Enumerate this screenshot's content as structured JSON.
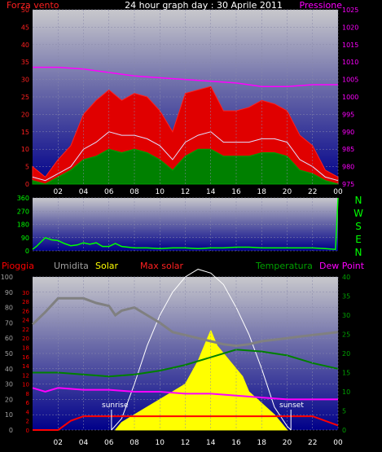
{
  "title": "24 hour graph day : 30 Aprile 2011",
  "colors": {
    "wind": "#ff0000",
    "gust": "#ff2020",
    "avg_wind": "#e0e0ff",
    "dir": "#00ff00",
    "pressure": "#ff00ff",
    "rain": "#ff0000",
    "humidity": "#808080",
    "solar": "#ffff00",
    "max_solar": "#ffffff",
    "temperature": "#008000",
    "dew": "#ff00ff",
    "label_rain": "#ff0000",
    "label_hum": "#a0a0a0",
    "label_solar": "#ffff00",
    "label_maxsolar": "#ff2020",
    "label_temp": "#00a000",
    "label_dew": "#ff00ff"
  },
  "chart_data": [
    {
      "type": "line",
      "labels": {
        "left": "Forza vento",
        "right": "Pressione"
      },
      "x_ticks": [
        "02",
        "04",
        "06",
        "08",
        "10",
        "12",
        "14",
        "16",
        "18",
        "20",
        "22",
        "00"
      ],
      "left_ticks": [
        0,
        5,
        10,
        15,
        20,
        25,
        30,
        35,
        40,
        45,
        50
      ],
      "right_ticks": [
        975,
        980,
        985,
        990,
        995,
        1000,
        1005,
        1010,
        1015,
        1020,
        1025
      ],
      "ylim_left": [
        0,
        50
      ],
      "ylim_right": [
        975,
        1025
      ],
      "series": [
        {
          "key": "gust",
          "x": [
            0,
            1,
            2,
            3,
            4,
            5,
            6,
            7,
            8,
            9,
            10,
            11,
            12,
            13,
            14,
            15,
            16,
            17,
            18,
            19,
            20,
            21,
            22,
            23,
            24
          ],
          "y": [
            5,
            2,
            7,
            11,
            20,
            24,
            27,
            24,
            26,
            25,
            21,
            15,
            26,
            27,
            28,
            21,
            21,
            22,
            24,
            23,
            21,
            14,
            11,
            4,
            2
          ]
        },
        {
          "key": "avg_wind",
          "x": [
            0,
            1,
            2,
            3,
            4,
            5,
            6,
            7,
            8,
            9,
            10,
            11,
            12,
            13,
            14,
            15,
            16,
            17,
            18,
            19,
            20,
            21,
            22,
            23,
            24
          ],
          "y": [
            2,
            1,
            3,
            5,
            10,
            12,
            15,
            14,
            14,
            13,
            11,
            7,
            12,
            14,
            15,
            12,
            12,
            12,
            13,
            13,
            12,
            7,
            5,
            2,
            1
          ]
        },
        {
          "key": "wind",
          "x": [
            0,
            1,
            2,
            3,
            4,
            5,
            6,
            7,
            8,
            9,
            10,
            11,
            12,
            13,
            14,
            15,
            16,
            17,
            18,
            19,
            20,
            21,
            22,
            23,
            24
          ],
          "y": [
            1,
            0,
            2,
            4,
            7,
            8,
            10,
            9,
            10,
            9,
            7,
            4,
            8,
            10,
            10,
            8,
            8,
            8,
            9,
            9,
            8,
            4,
            3,
            1,
            0
          ]
        },
        {
          "key": "pressure",
          "x": [
            0,
            2,
            4,
            6,
            8,
            10,
            12,
            14,
            16,
            18,
            20,
            22,
            24
          ],
          "y": [
            1008.5,
            1008.5,
            1008,
            1007,
            1006,
            1005.5,
            1005,
            1004.5,
            1004,
            1003,
            1003,
            1003.5,
            1003.5
          ]
        }
      ]
    },
    {
      "type": "line",
      "labels": {
        "right_top": "N",
        "right_labels": [
          "N",
          "W",
          "S",
          "E",
          "N"
        ]
      },
      "left_ticks": [
        0,
        90,
        180,
        270,
        360
      ],
      "ylim": [
        0,
        360
      ],
      "series": [
        {
          "key": "dir",
          "x": [
            0,
            0.3,
            1,
            1.5,
            2,
            2.5,
            3,
            3.5,
            4,
            4.5,
            5,
            5.5,
            6,
            6.5,
            7,
            8,
            9,
            10,
            11,
            12,
            13,
            14,
            15,
            16,
            17,
            18,
            19,
            20,
            21,
            22,
            23,
            23.8,
            24
          ],
          "y": [
            10,
            30,
            90,
            75,
            70,
            50,
            35,
            40,
            55,
            45,
            55,
            30,
            30,
            50,
            30,
            20,
            20,
            15,
            20,
            20,
            15,
            20,
            20,
            25,
            25,
            20,
            20,
            20,
            20,
            20,
            15,
            10,
            360
          ]
        }
      ]
    },
    {
      "type": "line",
      "labels": {
        "rain": "Pioggia",
        "hum": "Umidita",
        "solar": "Solar",
        "maxsolar": "Max solar",
        "temp": "Temperatura",
        "dew": "Dew Point"
      },
      "x_ticks": [
        "02",
        "04",
        "06",
        "08",
        "10",
        "12",
        "14",
        "16",
        "18",
        "20",
        "22",
        "00"
      ],
      "hum_ticks": [
        0,
        10,
        20,
        30,
        40,
        50,
        60,
        70,
        80,
        90,
        100
      ],
      "rain_ticks": [
        0,
        2,
        4,
        6,
        8,
        10,
        12,
        14,
        16,
        18,
        20,
        22,
        24,
        26,
        28,
        30
      ],
      "temp_ticks": [
        0,
        5,
        10,
        15,
        20,
        25,
        30,
        35,
        40
      ],
      "sunrise_label": "sunrise",
      "sunset_label": "sunset",
      "series": [
        {
          "key": "humidity",
          "x": [
            0,
            1,
            2,
            3,
            4,
            5,
            6,
            6.5,
            7,
            8,
            9,
            10,
            11,
            12,
            13,
            14,
            15,
            16,
            17,
            18,
            19,
            20,
            21,
            22,
            23,
            24
          ],
          "y": [
            69,
            77,
            86,
            86,
            86,
            83,
            81,
            75,
            78,
            80,
            75,
            70,
            64,
            62,
            60,
            58,
            56,
            55,
            56,
            58,
            59,
            60,
            61,
            62,
            63,
            64
          ]
        },
        {
          "key": "temperature",
          "x": [
            0,
            2,
            4,
            6,
            8,
            10,
            12,
            14,
            16,
            18,
            20,
            22,
            24
          ],
          "y": [
            15,
            15,
            14.5,
            14,
            14.5,
            15.5,
            17,
            19,
            21,
            20.5,
            19.5,
            17.5,
            16
          ]
        },
        {
          "key": "dew",
          "x": [
            0,
            1,
            2,
            4,
            6,
            8,
            10,
            12,
            14,
            16,
            18,
            20,
            22,
            24
          ],
          "y": [
            11,
            10,
            11,
            10.5,
            10.5,
            10,
            10,
            9.5,
            9.5,
            9,
            8.5,
            8,
            8,
            8
          ]
        },
        {
          "key": "rain",
          "x": [
            0,
            1,
            2,
            3,
            4,
            5,
            6,
            8,
            10,
            12,
            14,
            16,
            18,
            20,
            22,
            24
          ],
          "y": [
            0,
            0,
            0,
            2,
            3,
            3,
            3,
            3,
            3,
            3,
            3,
            3,
            3,
            3,
            3,
            1
          ]
        },
        {
          "key": "max_solar",
          "x": [
            6.2,
            7,
            8,
            9,
            10,
            11,
            12,
            13,
            14,
            15,
            16,
            17,
            18,
            19,
            20,
            20.3
          ],
          "y": [
            0,
            3,
            12,
            22,
            30,
            36,
            40,
            42,
            41,
            38,
            32,
            25,
            16,
            6,
            1,
            0
          ]
        },
        {
          "key": "solar",
          "x": [
            6.5,
            7,
            7.5,
            8,
            9,
            10,
            11,
            12,
            12.5,
            13,
            13.5,
            14,
            14.5,
            15,
            15.5,
            16,
            16.5,
            17,
            18,
            19,
            20
          ],
          "y": [
            0,
            2,
            3,
            4,
            6,
            8,
            10,
            12,
            15,
            18,
            22,
            26,
            22,
            20,
            18,
            16,
            14,
            10,
            7,
            4,
            0
          ]
        }
      ]
    }
  ]
}
